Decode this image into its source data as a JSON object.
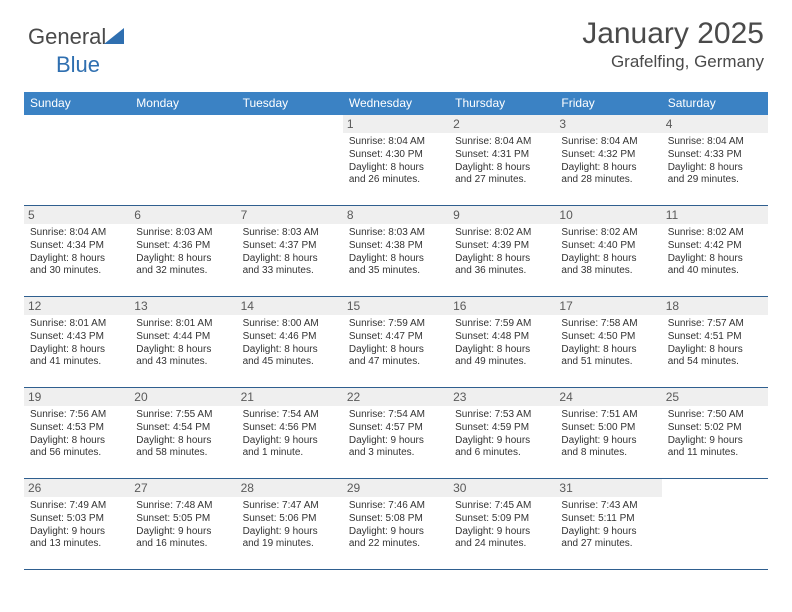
{
  "brand": {
    "name_a": "General",
    "name_b": "Blue"
  },
  "title": "January 2025",
  "location": "Grafelfing, Germany",
  "colors": {
    "header_bg": "#3b82c4",
    "rule": "#2f5f8f",
    "daynum_bg": "#efefef",
    "text": "#333333",
    "title": "#4a4a4a",
    "brand_blue": "#2f6fb0"
  },
  "weekday_labels": [
    "Sunday",
    "Monday",
    "Tuesday",
    "Wednesday",
    "Thursday",
    "Friday",
    "Saturday"
  ],
  "weeks": [
    [
      null,
      null,
      null,
      {
        "n": "1",
        "sunrise": "8:04 AM",
        "sunset": "4:30 PM",
        "daylight": "8 hours and 26 minutes."
      },
      {
        "n": "2",
        "sunrise": "8:04 AM",
        "sunset": "4:31 PM",
        "daylight": "8 hours and 27 minutes."
      },
      {
        "n": "3",
        "sunrise": "8:04 AM",
        "sunset": "4:32 PM",
        "daylight": "8 hours and 28 minutes."
      },
      {
        "n": "4",
        "sunrise": "8:04 AM",
        "sunset": "4:33 PM",
        "daylight": "8 hours and 29 minutes."
      }
    ],
    [
      {
        "n": "5",
        "sunrise": "8:04 AM",
        "sunset": "4:34 PM",
        "daylight": "8 hours and 30 minutes."
      },
      {
        "n": "6",
        "sunrise": "8:03 AM",
        "sunset": "4:36 PM",
        "daylight": "8 hours and 32 minutes."
      },
      {
        "n": "7",
        "sunrise": "8:03 AM",
        "sunset": "4:37 PM",
        "daylight": "8 hours and 33 minutes."
      },
      {
        "n": "8",
        "sunrise": "8:03 AM",
        "sunset": "4:38 PM",
        "daylight": "8 hours and 35 minutes."
      },
      {
        "n": "9",
        "sunrise": "8:02 AM",
        "sunset": "4:39 PM",
        "daylight": "8 hours and 36 minutes."
      },
      {
        "n": "10",
        "sunrise": "8:02 AM",
        "sunset": "4:40 PM",
        "daylight": "8 hours and 38 minutes."
      },
      {
        "n": "11",
        "sunrise": "8:02 AM",
        "sunset": "4:42 PM",
        "daylight": "8 hours and 40 minutes."
      }
    ],
    [
      {
        "n": "12",
        "sunrise": "8:01 AM",
        "sunset": "4:43 PM",
        "daylight": "8 hours and 41 minutes."
      },
      {
        "n": "13",
        "sunrise": "8:01 AM",
        "sunset": "4:44 PM",
        "daylight": "8 hours and 43 minutes."
      },
      {
        "n": "14",
        "sunrise": "8:00 AM",
        "sunset": "4:46 PM",
        "daylight": "8 hours and 45 minutes."
      },
      {
        "n": "15",
        "sunrise": "7:59 AM",
        "sunset": "4:47 PM",
        "daylight": "8 hours and 47 minutes."
      },
      {
        "n": "16",
        "sunrise": "7:59 AM",
        "sunset": "4:48 PM",
        "daylight": "8 hours and 49 minutes."
      },
      {
        "n": "17",
        "sunrise": "7:58 AM",
        "sunset": "4:50 PM",
        "daylight": "8 hours and 51 minutes."
      },
      {
        "n": "18",
        "sunrise": "7:57 AM",
        "sunset": "4:51 PM",
        "daylight": "8 hours and 54 minutes."
      }
    ],
    [
      {
        "n": "19",
        "sunrise": "7:56 AM",
        "sunset": "4:53 PM",
        "daylight": "8 hours and 56 minutes."
      },
      {
        "n": "20",
        "sunrise": "7:55 AM",
        "sunset": "4:54 PM",
        "daylight": "8 hours and 58 minutes."
      },
      {
        "n": "21",
        "sunrise": "7:54 AM",
        "sunset": "4:56 PM",
        "daylight": "9 hours and 1 minute."
      },
      {
        "n": "22",
        "sunrise": "7:54 AM",
        "sunset": "4:57 PM",
        "daylight": "9 hours and 3 minutes."
      },
      {
        "n": "23",
        "sunrise": "7:53 AM",
        "sunset": "4:59 PM",
        "daylight": "9 hours and 6 minutes."
      },
      {
        "n": "24",
        "sunrise": "7:51 AM",
        "sunset": "5:00 PM",
        "daylight": "9 hours and 8 minutes."
      },
      {
        "n": "25",
        "sunrise": "7:50 AM",
        "sunset": "5:02 PM",
        "daylight": "9 hours and 11 minutes."
      }
    ],
    [
      {
        "n": "26",
        "sunrise": "7:49 AM",
        "sunset": "5:03 PM",
        "daylight": "9 hours and 13 minutes."
      },
      {
        "n": "27",
        "sunrise": "7:48 AM",
        "sunset": "5:05 PM",
        "daylight": "9 hours and 16 minutes."
      },
      {
        "n": "28",
        "sunrise": "7:47 AM",
        "sunset": "5:06 PM",
        "daylight": "9 hours and 19 minutes."
      },
      {
        "n": "29",
        "sunrise": "7:46 AM",
        "sunset": "5:08 PM",
        "daylight": "9 hours and 22 minutes."
      },
      {
        "n": "30",
        "sunrise": "7:45 AM",
        "sunset": "5:09 PM",
        "daylight": "9 hours and 24 minutes."
      },
      {
        "n": "31",
        "sunrise": "7:43 AM",
        "sunset": "5:11 PM",
        "daylight": "9 hours and 27 minutes."
      },
      null
    ]
  ],
  "labels": {
    "sunrise": "Sunrise:",
    "sunset": "Sunset:",
    "daylight": "Daylight:"
  }
}
